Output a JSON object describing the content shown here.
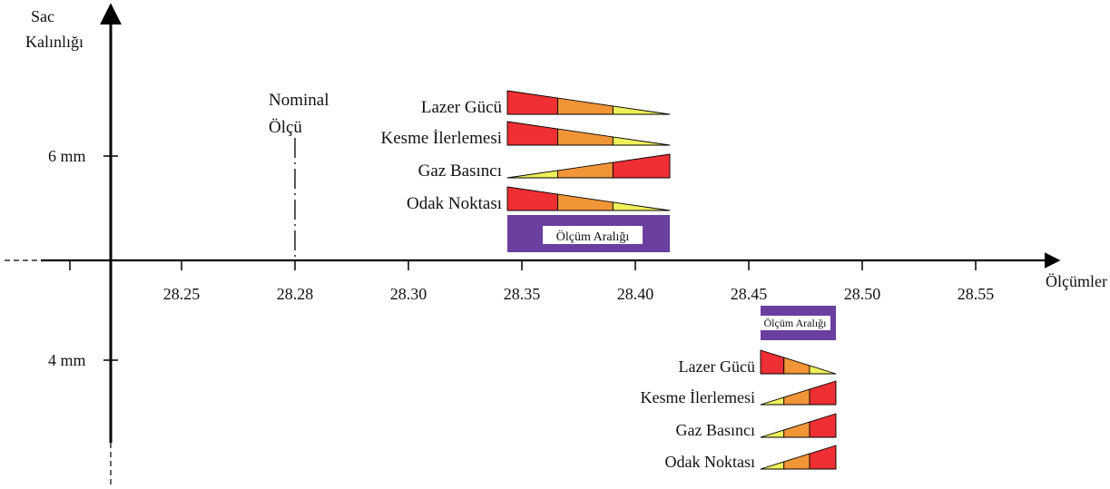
{
  "axis": {
    "y_title": [
      "Sac",
      "Kalınlığı"
    ],
    "x_title": "Ölçümler",
    "y_labels": [
      "6 mm",
      "4 mm"
    ],
    "x_ticks": [
      "28.25",
      "28.28",
      "28.30",
      "28.35",
      "28.40",
      "28.45",
      "28.50",
      "28.55"
    ]
  },
  "nominal": [
    "Nominal",
    "Ölçü"
  ],
  "groups": [
    {
      "id": "6mm",
      "range_label": "Ölçüm Aralığı",
      "params": [
        {
          "label": "Lazer Gücü",
          "shape": "decreasing"
        },
        {
          "label": "Kesme İlerlemesi",
          "shape": "decreasing"
        },
        {
          "label": "Gaz Basıncı",
          "shape": "increasing"
        },
        {
          "label": "Odak Noktası",
          "shape": "decreasing"
        }
      ]
    },
    {
      "id": "4mm",
      "range_label": "Ölçüm Aralığı",
      "params": [
        {
          "label": "Lazer Gücü",
          "shape": "decreasing"
        },
        {
          "label": "Kesme İlerlemesi",
          "shape": "increasing"
        },
        {
          "label": "Gaz Basıncı",
          "shape": "increasing"
        },
        {
          "label": "Odak Noktası",
          "shape": "increasing"
        }
      ]
    }
  ],
  "colors": {
    "high": "#ee2f33",
    "mid": "#f19537",
    "low": "#eef05a",
    "range_fill": "#6a3fa0",
    "axis": "#000000"
  }
}
